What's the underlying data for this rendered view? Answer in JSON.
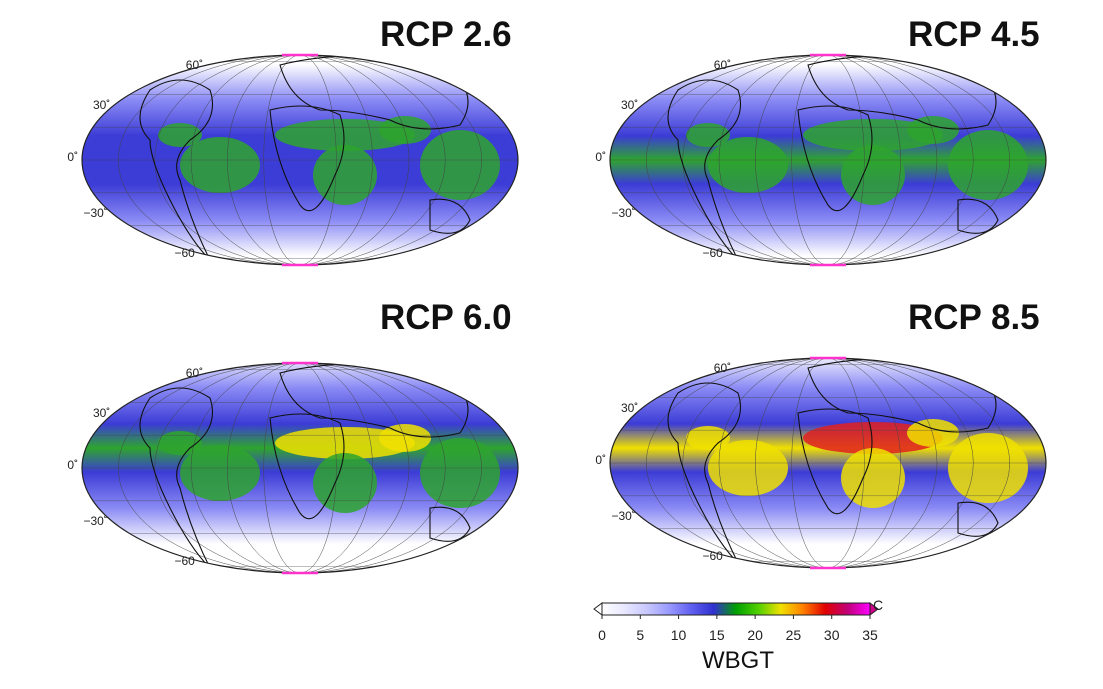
{
  "figure": {
    "panels": [
      {
        "title": "RCP 2.6",
        "lat_labels": [
          "60˚",
          "30˚",
          "0˚",
          "−30˚",
          "−60"
        ],
        "level": 1
      },
      {
        "title": "RCP 4.5",
        "lat_labels": [
          "60˚",
          "30˚",
          "0˚",
          "−30˚",
          "−60"
        ],
        "level": 2
      },
      {
        "title": "RCP 6.0",
        "lat_labels": [
          "60˚",
          "30˚",
          "0˚",
          "−30˚",
          "−60"
        ],
        "level": 3
      },
      {
        "title": "RCP 8.5",
        "lat_labels": [
          "60˚",
          "30˚",
          "0˚",
          "−30˚",
          "−60"
        ],
        "level": 4
      }
    ],
    "colorbar": {
      "ticks": [
        "0",
        "5",
        "10",
        "15",
        "20",
        "25",
        "30",
        "35"
      ],
      "unit": "C",
      "variable": "WBGT",
      "range": [
        0,
        35
      ],
      "colors": [
        "#ffffff",
        "#e8e8ff",
        "#c8c8ff",
        "#9a9aff",
        "#6060f0",
        "#3030d0",
        "#00a000",
        "#50d000",
        "#f0e000",
        "#ff8000",
        "#e00000",
        "#c0007a",
        "#ff00ff"
      ]
    },
    "projection": "Hammer-Aitoff",
    "colors": {
      "cold": "#ffffff",
      "cool": "#8a8af5",
      "mid": "#3c3cd6",
      "warm": "#2ea52e",
      "hot": "#f0e000",
      "hottest": "#e02020",
      "pole_marker": "#ff33cc"
    }
  }
}
